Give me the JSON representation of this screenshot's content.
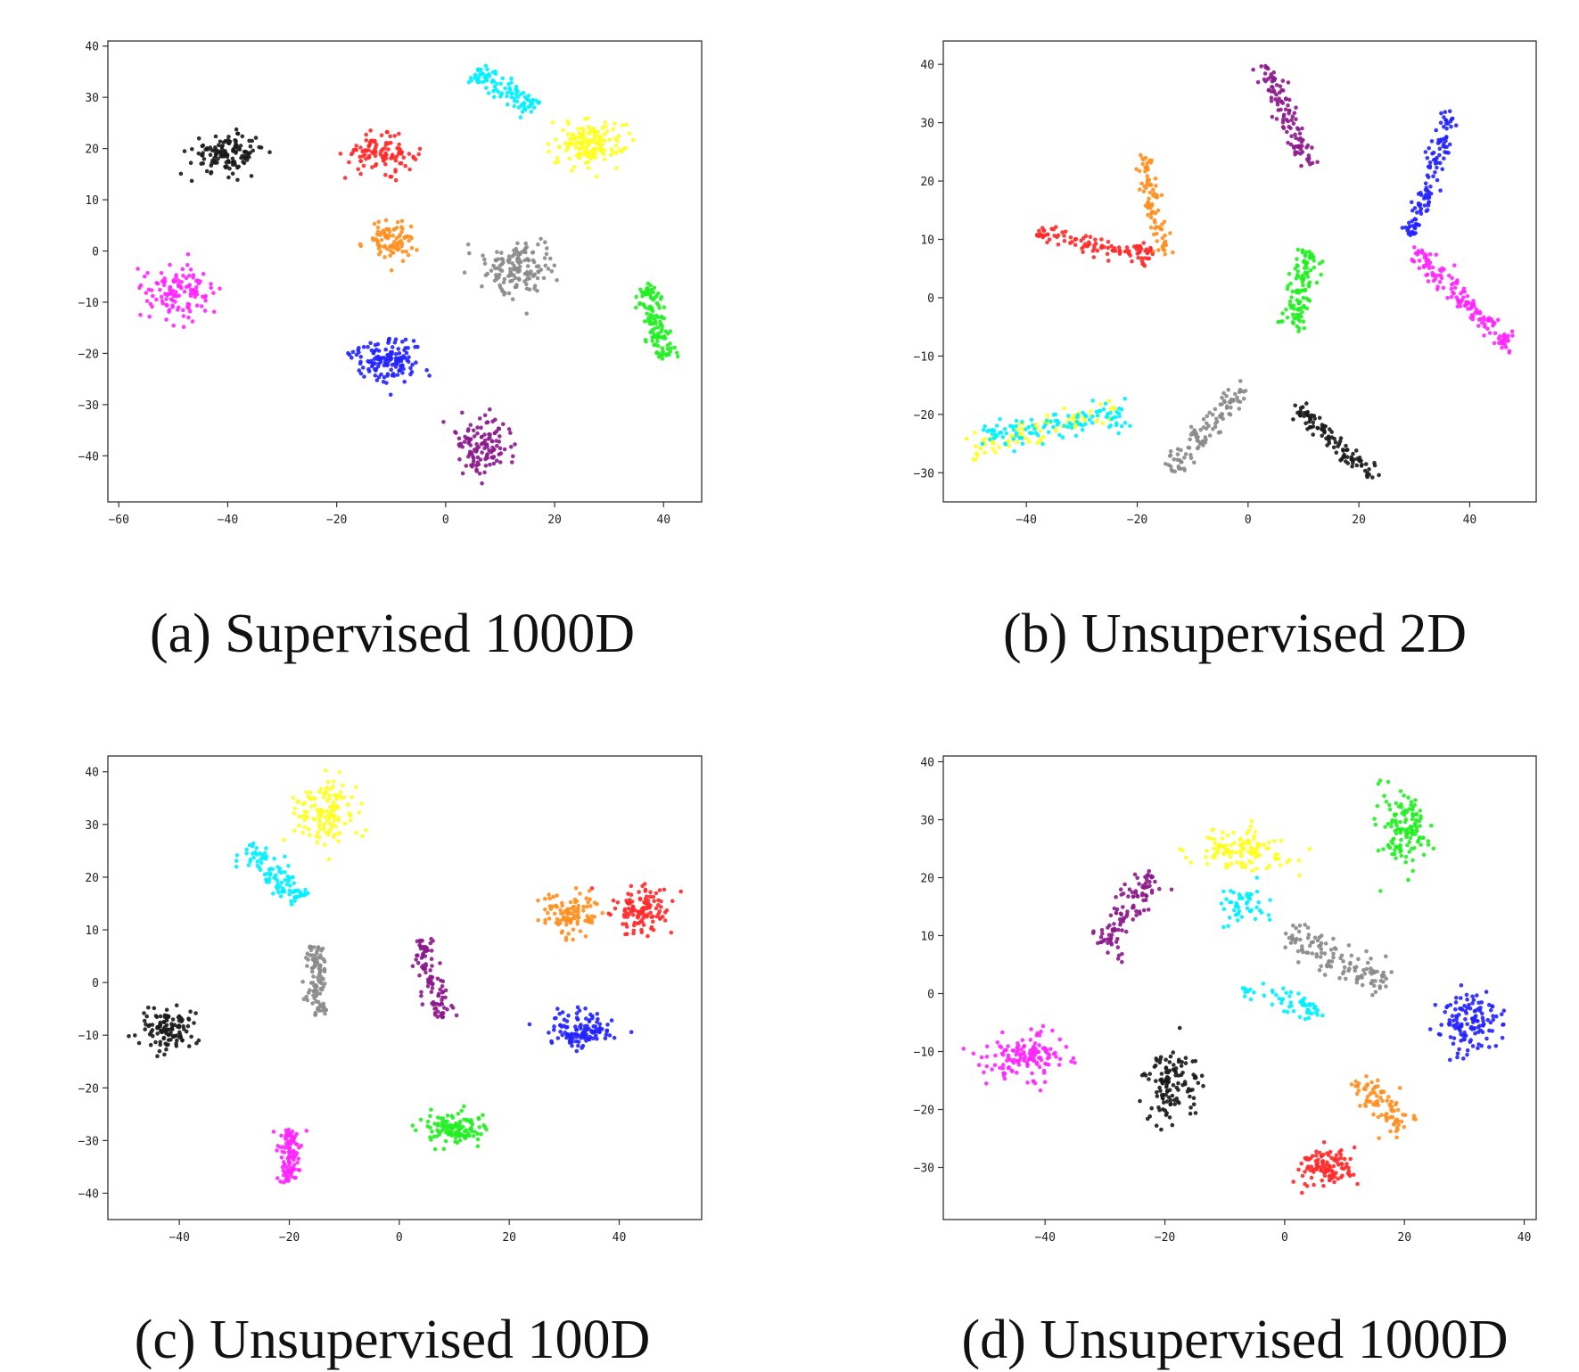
{
  "captions": {
    "a": "(a) Supervised 1000D",
    "b": "(b) Unsupervised 2D",
    "c": "(c) Unsupervised 100D",
    "d": "(d) Unsupervised 1000D"
  },
  "colors": {
    "black": "#1a1a1a",
    "red": "#ff2a2a",
    "cyan": "#00f0ff",
    "yellow": "#ffff1e",
    "orange": "#ff9020",
    "gray": "#8a8a8a",
    "magenta": "#ff26ff",
    "green": "#22ee22",
    "blue": "#2222ff",
    "purple": "#8b1a8b"
  },
  "chart_data": [
    {
      "type": "scatter",
      "caption": "(a) Supervised 1000D",
      "xlim": [
        -62,
        47
      ],
      "ylim": [
        -49,
        41
      ],
      "xticks": [
        -60,
        -40,
        -20,
        0,
        20,
        40
      ],
      "yticks": [
        -40,
        -30,
        -20,
        -10,
        0,
        10,
        20,
        30,
        40
      ],
      "clusters": [
        {
          "color": "black",
          "shape": "blob",
          "center": [
            -40,
            19
          ],
          "spread": [
            6,
            3.5
          ],
          "n": 130
        },
        {
          "color": "red",
          "shape": "blob",
          "center": [
            -12,
            19
          ],
          "spread": [
            6,
            3
          ],
          "n": 110
        },
        {
          "color": "cyan",
          "shape": "line",
          "from": [
            5,
            35
          ],
          "to": [
            16,
            28
          ],
          "spread": 2.2,
          "n": 100
        },
        {
          "color": "yellow",
          "shape": "blob",
          "center": [
            26,
            21
          ],
          "spread": [
            6,
            4
          ],
          "n": 150
        },
        {
          "color": "orange",
          "shape": "blob",
          "center": [
            -10,
            2
          ],
          "spread": [
            4,
            3.5
          ],
          "n": 90
        },
        {
          "color": "gray",
          "shape": "blob",
          "center": [
            14,
            -3
          ],
          "spread": [
            6,
            5
          ],
          "n": 140
        },
        {
          "color": "magenta",
          "shape": "blob",
          "center": [
            -49,
            -8
          ],
          "spread": [
            5.5,
            5
          ],
          "n": 120
        },
        {
          "color": "green",
          "shape": "line",
          "from": [
            37,
            -7
          ],
          "to": [
            40,
            -21
          ],
          "spread": 2.3,
          "n": 120
        },
        {
          "color": "blue",
          "shape": "blob",
          "center": [
            -11,
            -21
          ],
          "spread": [
            6,
            4
          ],
          "n": 140
        },
        {
          "color": "purple",
          "shape": "blob",
          "center": [
            7,
            -38
          ],
          "spread": [
            5,
            5
          ],
          "n": 120
        }
      ]
    },
    {
      "type": "scatter",
      "caption": "(b) Unsupervised 2D",
      "xlim": [
        -55,
        52
      ],
      "ylim": [
        -35,
        44
      ],
      "xticks": [
        -40,
        -20,
        0,
        20,
        40
      ],
      "yticks": [
        -30,
        -20,
        -10,
        0,
        10,
        20,
        30,
        40
      ],
      "clusters": [
        {
          "color": "purple",
          "shape": "line",
          "from": [
            3,
            40
          ],
          "to": [
            11,
            23
          ],
          "spread": 1.8,
          "n": 110
        },
        {
          "color": "blue",
          "shape": "line",
          "from": [
            37,
            32
          ],
          "to": [
            29,
            10
          ],
          "spread": 1.6,
          "n": 120
        },
        {
          "color": "magenta",
          "shape": "line",
          "from": [
            30,
            8
          ],
          "to": [
            47,
            -8
          ],
          "spread": 1.6,
          "n": 150
        },
        {
          "color": "orange",
          "shape": "line",
          "from": [
            -19,
            24
          ],
          "to": [
            -15,
            7
          ],
          "spread": 1.6,
          "n": 90
        },
        {
          "color": "red",
          "shape": "line",
          "from": [
            -38,
            11
          ],
          "to": [
            -17,
            7
          ],
          "spread": 1.5,
          "n": 110
        },
        {
          "color": "green",
          "shape": "line",
          "from": [
            11,
            8
          ],
          "to": [
            8,
            -5
          ],
          "spread": 2.4,
          "n": 110
        },
        {
          "color": "yellow",
          "shape": "line",
          "from": [
            -50,
            -26
          ],
          "to": [
            -24,
            -19
          ],
          "spread": 2.0,
          "n": 100
        },
        {
          "color": "cyan",
          "shape": "line",
          "from": [
            -48,
            -24
          ],
          "to": [
            -22,
            -20
          ],
          "spread": 2.4,
          "n": 110
        },
        {
          "color": "gray",
          "shape": "line",
          "from": [
            -14,
            -30
          ],
          "to": [
            -1,
            -15
          ],
          "spread": 1.8,
          "n": 110
        },
        {
          "color": "black",
          "shape": "line",
          "from": [
            9,
            -19
          ],
          "to": [
            23,
            -31
          ],
          "spread": 1.5,
          "n": 100
        }
      ]
    },
    {
      "type": "scatter",
      "caption": "(c) Unsupervised 100D",
      "xlim": [
        -53,
        55
      ],
      "ylim": [
        -45,
        43
      ],
      "xticks": [
        -40,
        -20,
        0,
        20,
        40
      ],
      "yticks": [
        -40,
        -30,
        -20,
        -10,
        0,
        10,
        20,
        30,
        40
      ],
      "clusters": [
        {
          "color": "yellow",
          "shape": "blob",
          "center": [
            -14,
            32
          ],
          "spread": [
            5,
            5.5
          ],
          "n": 130
        },
        {
          "color": "cyan",
          "shape": "line",
          "from": [
            -28,
            26
          ],
          "to": [
            -18,
            16
          ],
          "spread": 2.5,
          "n": 100
        },
        {
          "color": "orange",
          "shape": "blob",
          "center": [
            31,
            13
          ],
          "spread": [
            5,
            4
          ],
          "n": 110
        },
        {
          "color": "red",
          "shape": "blob",
          "center": [
            44,
            14
          ],
          "spread": [
            5,
            4
          ],
          "n": 120
        },
        {
          "color": "gray",
          "shape": "line",
          "from": [
            -15,
            7
          ],
          "to": [
            -15,
            -6
          ],
          "spread": 2.0,
          "n": 100
        },
        {
          "color": "purple",
          "shape": "line",
          "from": [
            4,
            8
          ],
          "to": [
            8,
            -7
          ],
          "spread": 2.0,
          "n": 100
        },
        {
          "color": "black",
          "shape": "blob",
          "center": [
            -42,
            -9
          ],
          "spread": [
            5,
            3.5
          ],
          "n": 110
        },
        {
          "color": "blue",
          "shape": "blob",
          "center": [
            33,
            -9
          ],
          "spread": [
            5,
            3.5
          ],
          "n": 120
        },
        {
          "color": "magenta",
          "shape": "line",
          "from": [
            -20,
            -28
          ],
          "to": [
            -20,
            -38
          ],
          "spread": 2.2,
          "n": 110
        },
        {
          "color": "green",
          "shape": "blob",
          "center": [
            10,
            -28
          ],
          "spread": [
            5,
            3
          ],
          "n": 120
        }
      ]
    },
    {
      "type": "scatter",
      "caption": "(d) Unsupervised 1000D",
      "xlim": [
        -57,
        42
      ],
      "ylim": [
        -39,
        41
      ],
      "xticks": [
        -40,
        -20,
        0,
        20,
        40
      ],
      "yticks": [
        -30,
        -20,
        -10,
        0,
        10,
        20,
        30,
        40
      ],
      "clusters": [
        {
          "color": "green",
          "shape": "blob",
          "center": [
            20,
            28
          ],
          "spread": [
            4,
            6
          ],
          "n": 130
        },
        {
          "color": "yellow",
          "shape": "blob",
          "center": [
            -7,
            25
          ],
          "spread": [
            7,
            3.5
          ],
          "n": 120
        },
        {
          "color": "purple",
          "shape": "line",
          "from": [
            -22,
            21
          ],
          "to": [
            -31,
            7
          ],
          "spread": 2.8,
          "n": 110
        },
        {
          "color": "cyan",
          "shape": "blob",
          "center": [
            -7,
            15
          ],
          "spread": [
            4,
            3
          ],
          "n": 50
        },
        {
          "color": "cyan",
          "shape": "line",
          "from": [
            -7,
            1
          ],
          "to": [
            6,
            -3
          ],
          "spread": 2.0,
          "n": 60
        },
        {
          "color": "gray",
          "shape": "line",
          "from": [
            0,
            10
          ],
          "to": [
            17,
            2
          ],
          "spread": 3.0,
          "n": 120
        },
        {
          "color": "blue",
          "shape": "blob",
          "center": [
            31,
            -5
          ],
          "spread": [
            5,
            5
          ],
          "n": 130
        },
        {
          "color": "magenta",
          "shape": "blob",
          "center": [
            -43,
            -11
          ],
          "spread": [
            6,
            4
          ],
          "n": 140
        },
        {
          "color": "black",
          "shape": "blob",
          "center": [
            -19,
            -16
          ],
          "spread": [
            4,
            5.5
          ],
          "n": 120
        },
        {
          "color": "orange",
          "shape": "line",
          "from": [
            12,
            -15
          ],
          "to": [
            20,
            -23
          ],
          "spread": 2.8,
          "n": 90
        },
        {
          "color": "red",
          "shape": "blob",
          "center": [
            7,
            -30
          ],
          "spread": [
            5,
            3
          ],
          "n": 110
        }
      ]
    }
  ]
}
